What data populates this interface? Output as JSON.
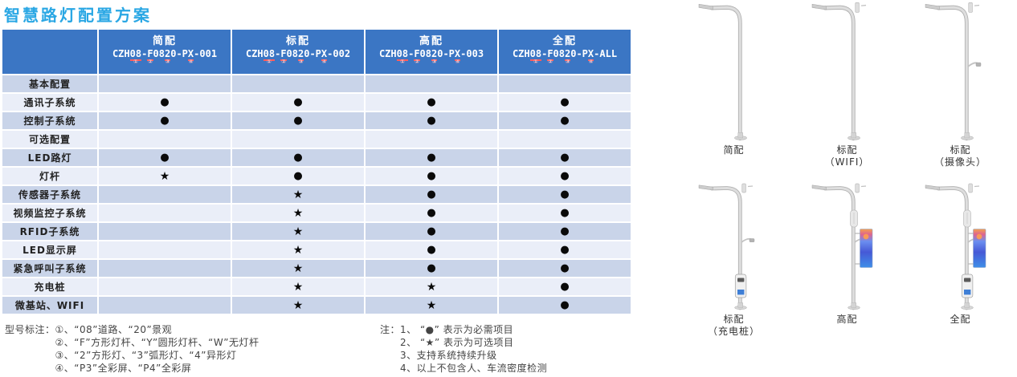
{
  "title": "智慧路灯配置方案",
  "colors": {
    "title_blue": "#2aa7e4",
    "header_bg": "#3b76c4",
    "header_text": "#ffffff",
    "row_dark": "#c9d4e9",
    "row_light": "#eaeef8",
    "underline_red": "#ff5c5c",
    "mark_black": "#0a0a0a",
    "footnote_text": "#444444"
  },
  "table": {
    "columns": [
      {
        "name": "简配",
        "model": "CZH08-F0820-PX-001",
        "model_parts": [
          {
            "t": "CZH"
          },
          {
            "t": "08",
            "n": "①"
          },
          {
            "t": "-"
          },
          {
            "t": "F",
            "n": "②"
          },
          {
            "t": "08"
          },
          {
            "t": "2",
            "n": "③"
          },
          {
            "t": "0-P"
          },
          {
            "t": "X",
            "n": "④"
          },
          {
            "t": "-001"
          }
        ]
      },
      {
        "name": "标配",
        "model": "CZH08-F0820-PX-002",
        "model_parts": [
          {
            "t": "CZH"
          },
          {
            "t": "08",
            "n": "①"
          },
          {
            "t": "-"
          },
          {
            "t": "F",
            "n": "②"
          },
          {
            "t": "08"
          },
          {
            "t": "2",
            "n": "③"
          },
          {
            "t": "0-P"
          },
          {
            "t": "X",
            "n": "④"
          },
          {
            "t": "-002"
          }
        ]
      },
      {
        "name": "高配",
        "model": "CZH08-F0820-PX-003",
        "model_parts": [
          {
            "t": "CZH"
          },
          {
            "t": "08",
            "n": "①"
          },
          {
            "t": "-"
          },
          {
            "t": "F",
            "n": "②"
          },
          {
            "t": "08"
          },
          {
            "t": "2",
            "n": "③"
          },
          {
            "t": "0-P"
          },
          {
            "t": "X",
            "n": "④"
          },
          {
            "t": "-003"
          }
        ]
      },
      {
        "name": "全配",
        "model": "CZH08-F0820-PX-ALL",
        "model_parts": [
          {
            "t": "CZH"
          },
          {
            "t": "08",
            "n": "①"
          },
          {
            "t": "-"
          },
          {
            "t": "F",
            "n": "②"
          },
          {
            "t": "08"
          },
          {
            "t": "2",
            "n": "③"
          },
          {
            "t": "0-P"
          },
          {
            "t": "X",
            "n": "④"
          },
          {
            "t": "-ALL"
          }
        ]
      }
    ],
    "rows": [
      {
        "label": "基本配置",
        "cells": [
          "",
          "",
          "",
          ""
        ]
      },
      {
        "label": "通讯子系统",
        "cells": [
          "●",
          "●",
          "●",
          "●"
        ]
      },
      {
        "label": "控制子系统",
        "cells": [
          "●",
          "●",
          "●",
          "●"
        ]
      },
      {
        "label": "可选配置",
        "cells": [
          "",
          "",
          "",
          ""
        ]
      },
      {
        "label": "LED路灯",
        "cells": [
          "●",
          "●",
          "●",
          "●"
        ]
      },
      {
        "label": "灯杆",
        "cells": [
          "★",
          "●",
          "●",
          "●"
        ]
      },
      {
        "label": "传感器子系统",
        "cells": [
          "",
          "★",
          "●",
          "●"
        ]
      },
      {
        "label": "视频监控子系统",
        "cells": [
          "",
          "★",
          "●",
          "●"
        ]
      },
      {
        "label": "RFID子系统",
        "cells": [
          "",
          "★",
          "●",
          "●"
        ]
      },
      {
        "label": "LED显示屏",
        "cells": [
          "",
          "★",
          "●",
          "●"
        ]
      },
      {
        "label": "紧急呼叫子系统",
        "cells": [
          "",
          "★",
          "●",
          "●"
        ]
      },
      {
        "label": "充电桩",
        "cells": [
          "",
          "★",
          "★",
          "●"
        ]
      },
      {
        "label": "微基站、WIFI",
        "cells": [
          "",
          "★",
          "★",
          "●"
        ]
      }
    ]
  },
  "footnotes": {
    "left_title": "型号标注：",
    "left_items": [
      "①、“08”道路、“20”景观",
      "②、“F”方形灯杆、“Y”圆形灯杆、“W”无灯杆",
      "③、“2”方形灯、“3”弧形灯、“4”异形灯",
      "④、“P3”全彩屏、“P4”全彩屏"
    ],
    "right_title": "注：",
    "right_items": [
      "1、 “●” 表示为必需项目",
      "2、 “★” 表示为可选项目",
      "3、支持系统持续升级",
      "4、以上不包含人、车流密度检测"
    ]
  },
  "poles": [
    {
      "label": "简配",
      "sublabel": "",
      "features": []
    },
    {
      "label": "标配",
      "sublabel": "（WIFI）",
      "features": [
        "wifi"
      ]
    },
    {
      "label": "标配",
      "sublabel": "（摄像头）",
      "features": [
        "wifi",
        "camera"
      ]
    },
    {
      "label": "标配",
      "sublabel": "（充电桩）",
      "features": [
        "wifi",
        "camera",
        "charger"
      ]
    },
    {
      "label": "高配",
      "sublabel": "",
      "features": [
        "wifi",
        "box",
        "camera",
        "screen"
      ]
    },
    {
      "label": "全配",
      "sublabel": "",
      "features": [
        "wifi",
        "box",
        "camera",
        "screen",
        "charger"
      ]
    }
  ]
}
